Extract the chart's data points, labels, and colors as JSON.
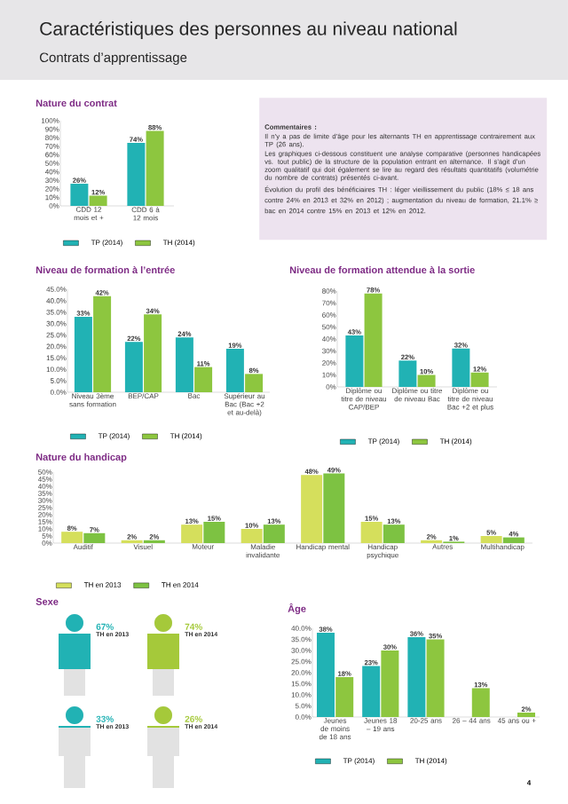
{
  "chart_data": [
    {
      "type": "other",
      "title": "Caractéristiques des personnes au niveau national",
      "subtitle": "Contrats d’apprentissage",
      "annotations": [
        "4"
      ]
    },
    {
      "type": "bar",
      "title": "Nature du contrat",
      "categories": [
        "CDD 12 mois et +",
        "CDD 6 à 12 mois"
      ],
      "series": [
        {
          "name": "TP (2014)",
          "color": "#21b2b4",
          "values": [
            26,
            74
          ],
          "value_labels": [
            "26%",
            "74%"
          ]
        },
        {
          "name": "TH (2014)",
          "color": "#8dc63f",
          "values": [
            12,
            88
          ],
          "value_labels": [
            "12%",
            "88%"
          ]
        }
      ],
      "ylim": [
        0,
        100
      ],
      "yticks": [
        {
          "value": 0,
          "label": "0%"
        },
        {
          "value": 10,
          "label": "10%"
        },
        {
          "value": 20,
          "label": "20%"
        },
        {
          "value": 30,
          "label": "30%"
        },
        {
          "value": 40,
          "label": "40%"
        },
        {
          "value": 50,
          "label": "50%"
        },
        {
          "value": 60,
          "label": "60%"
        },
        {
          "value": 70,
          "label": "70%"
        },
        {
          "value": 80,
          "label": "80%"
        },
        {
          "value": 90,
          "label": "90%"
        },
        {
          "value": 100,
          "label": "100%"
        }
      ],
      "legend": "bottom"
    },
    {
      "type": "other",
      "title": "Commentaires :",
      "annotations": [
        "Il n’y a pas de limite d’âge pour les alternants TH en apprentissage contrairement aux TP (26 ans).",
        "Les graphiques ci-dessous constituent une analyse comparative (personnes handicapées vs. tout public) de la structure de la population entrant en alternance. Il s’agit d’un zoom qualitatif qui doit également se lire au regard des résultats quantitatifs (volumétrie du nombre de contrats) présentés ci-avant.",
        "Évolution du profil des bénéficiaires TH : léger vieillissement du public (18% ≤ 18 ans contre 24% en 2013 et 32% en 2012) ; augmentation du niveau de formation, 21.1% ≥ bac en 2014 contre 15% en 2013 et 12% en 2012."
      ]
    },
    {
      "type": "bar",
      "title": "Niveau de formation à l’entrée",
      "categories": [
        "Niveau 3ème sans formation",
        "BEP/CAP",
        "Bac",
        "Supérieur au Bac (Bac +2 et au-delà)"
      ],
      "series": [
        {
          "name": "TP (2014)",
          "color": "#21b2b4",
          "values": [
            33,
            22,
            24,
            19
          ],
          "value_labels": [
            "33%",
            "22%",
            "24%",
            "19%"
          ]
        },
        {
          "name": "TH (2014)",
          "color": "#8dc63f",
          "values": [
            42,
            34,
            11,
            8
          ],
          "value_labels": [
            "42%",
            "34%",
            "11%",
            "8%"
          ]
        }
      ],
      "ylim": [
        0,
        45
      ],
      "yticks": [
        {
          "value": 0,
          "label": "0.0%"
        },
        {
          "value": 5,
          "label": "5.0%"
        },
        {
          "value": 10,
          "label": "10.0%"
        },
        {
          "value": 15,
          "label": "15.0%"
        },
        {
          "value": 20,
          "label": "20.0%"
        },
        {
          "value": 25,
          "label": "25.0%"
        },
        {
          "value": 30,
          "label": "30.0%"
        },
        {
          "value": 35,
          "label": "35.0%"
        },
        {
          "value": 40,
          "label": "40.0%"
        },
        {
          "value": 45,
          "label": "45.0%"
        }
      ],
      "legend": "bottom"
    },
    {
      "type": "bar",
      "title": "Niveau de formation attendue à la sortie",
      "categories": [
        "Diplôme ou titre de niveau CAP/BEP",
        "Diplôme ou titre de niveau Bac",
        "Diplôme ou titre de niveau Bac +2 et plus"
      ],
      "series": [
        {
          "name": "TP (2014)",
          "color": "#21b2b4",
          "values": [
            43,
            22,
            32
          ],
          "value_labels": [
            "43%",
            "22%",
            "32%"
          ]
        },
        {
          "name": "TH (2014)",
          "color": "#8dc63f",
          "values": [
            78,
            10,
            12
          ],
          "value_labels": [
            "78%",
            "10%",
            "12%"
          ]
        }
      ],
      "ylim": [
        0,
        80
      ],
      "yticks": [
        {
          "value": 0,
          "label": "0%"
        },
        {
          "value": 10,
          "label": "10%"
        },
        {
          "value": 20,
          "label": "20%"
        },
        {
          "value": 30,
          "label": "30%"
        },
        {
          "value": 40,
          "label": "40%"
        },
        {
          "value": 50,
          "label": "50%"
        },
        {
          "value": 60,
          "label": "60%"
        },
        {
          "value": 70,
          "label": "70%"
        },
        {
          "value": 80,
          "label": "80%"
        }
      ],
      "legend": "bottom"
    },
    {
      "type": "bar",
      "title": "Nature du handicap",
      "categories": [
        "Auditif",
        "Visuel",
        "Moteur",
        "Maladie invalidante",
        "Handicap mental",
        "Handicap psychique",
        "Autres",
        "Multihandicap"
      ],
      "series": [
        {
          "name": "TH en 2013",
          "color": "#d5df5c",
          "values": [
            8,
            2,
            13,
            10,
            48,
            15,
            2,
            5
          ],
          "value_labels": [
            "8%",
            "2%",
            "13%",
            "10%",
            "48%",
            "15%",
            "2%",
            "5%"
          ]
        },
        {
          "name": "TH en 2014",
          "color": "#7dc242",
          "values": [
            7,
            2,
            15,
            13,
            49,
            13,
            1,
            4
          ],
          "value_labels": [
            "7%",
            "2%",
            "15%",
            "13%",
            "49%",
            "13%",
            "1%",
            "4%"
          ]
        }
      ],
      "ylim": [
        0,
        50
      ],
      "yticks": [
        {
          "value": 0,
          "label": "0%"
        },
        {
          "value": 5,
          "label": "5%"
        },
        {
          "value": 10,
          "label": "10%"
        },
        {
          "value": 15,
          "label": "15%"
        },
        {
          "value": 20,
          "label": "20%"
        },
        {
          "value": 25,
          "label": "25%"
        },
        {
          "value": 30,
          "label": "30%"
        },
        {
          "value": 35,
          "label": "35%"
        },
        {
          "value": 40,
          "label": "40%"
        },
        {
          "value": 45,
          "label": "45%"
        },
        {
          "value": 50,
          "label": "50%"
        }
      ],
      "legend": "bottom"
    },
    {
      "type": "other",
      "title": "Sexe",
      "annotations": [
        "67%",
        "TH en 2013",
        "74%",
        "TH en 2014",
        "33%",
        "TH en 2013",
        "26%",
        "TH en 2014"
      ]
    },
    {
      "type": "bar",
      "title": "Âge",
      "categories": [
        "Jeunes de moins de 18 ans",
        "Jeunes 18 – 19 ans",
        "20-25 ans",
        "26 – 44 ans",
        "45 ans ou +"
      ],
      "series": [
        {
          "name": "TP (2014)",
          "color": "#21b2b4",
          "values": [
            38,
            23,
            36,
            null,
            null
          ],
          "value_labels": [
            "38%",
            "23%",
            "36%",
            null,
            null
          ]
        },
        {
          "name": "TH (2014)",
          "color": "#8dc63f",
          "values": [
            18,
            30,
            35,
            13,
            2
          ],
          "value_labels": [
            "18%",
            "30%",
            "35%",
            "13%",
            "2%"
          ]
        }
      ],
      "ylim": [
        0,
        40
      ],
      "yticks": [
        {
          "value": 0,
          "label": "0.0%"
        },
        {
          "value": 5,
          "label": "5.0%"
        },
        {
          "value": 10,
          "label": "10.0%"
        },
        {
          "value": 15,
          "label": "15.0%"
        },
        {
          "value": 20,
          "label": "20.0%"
        },
        {
          "value": 25,
          "label": "25.0%"
        },
        {
          "value": 30,
          "label": "30.0%"
        },
        {
          "value": 35,
          "label": "35.0%"
        },
        {
          "value": 40,
          "label": "40.0%"
        }
      ],
      "legend": "bottom"
    }
  ]
}
